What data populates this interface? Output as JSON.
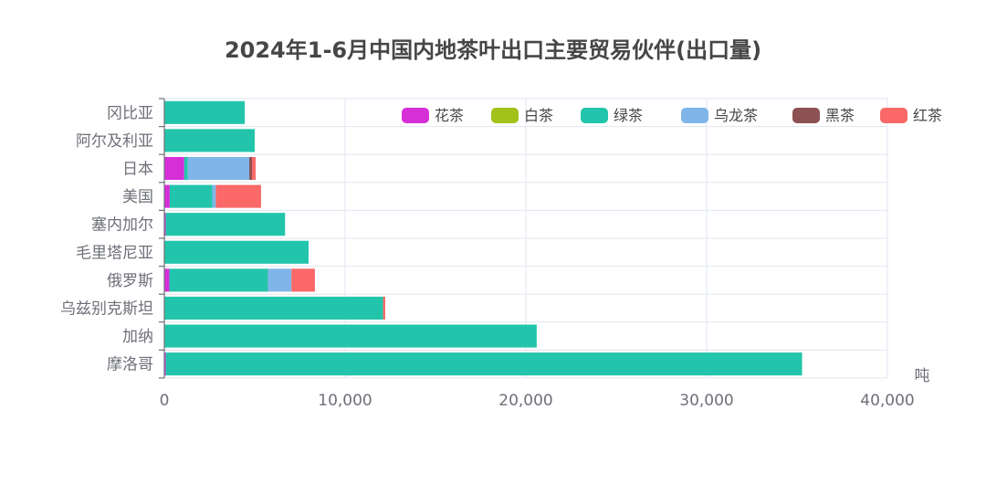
{
  "chart_data": {
    "type": "bar",
    "orientation": "horizontal",
    "stacked": true,
    "title": "2024年1-6月中国内地茶叶出口主要贸易伙伴(出口量)",
    "x_unit": "吨",
    "xlim": [
      0,
      40000
    ],
    "x_ticks": [
      "0",
      "10,000",
      "20,000",
      "30,000",
      "40,000"
    ],
    "x_tick_values": [
      0,
      10000,
      20000,
      30000,
      40000
    ],
    "grid": true,
    "legend_position": "top-right",
    "categories": [
      "冈比亚",
      "阿尔及利亚",
      "日本",
      "美国",
      "塞内加尔",
      "毛里塔尼亚",
      "俄罗斯",
      "乌兹别克斯坦",
      "加纳",
      "摩洛哥"
    ],
    "series": [
      {
        "name": "花茶",
        "color": "#d62fd8",
        "values": [
          0,
          0,
          1100,
          300,
          80,
          0,
          280,
          0,
          0,
          80
        ]
      },
      {
        "name": "白茶",
        "color": "#a3c11b",
        "values": [
          0,
          0,
          0,
          0,
          0,
          0,
          0,
          0,
          0,
          0
        ]
      },
      {
        "name": "绿茶",
        "color": "#22c5ab",
        "values": [
          4450,
          5000,
          200,
          2350,
          6600,
          7980,
          5450,
          12100,
          20600,
          35200
        ]
      },
      {
        "name": "乌龙茶",
        "color": "#7fb5e8",
        "values": [
          0,
          0,
          3400,
          200,
          0,
          0,
          1300,
          0,
          0,
          0
        ]
      },
      {
        "name": "黑茶",
        "color": "#8b5153",
        "values": [
          0,
          0,
          150,
          0,
          0,
          0,
          0,
          0,
          0,
          0
        ]
      },
      {
        "name": "红茶",
        "color": "#fa6868",
        "values": [
          0,
          0,
          200,
          2500,
          0,
          0,
          1300,
          120,
          0,
          0
        ]
      }
    ]
  }
}
